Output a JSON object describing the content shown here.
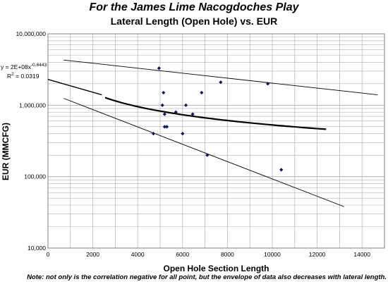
{
  "chart_data": {
    "type": "scatter",
    "title": "For the James Lime Nacogdoches Play",
    "subtitle": "Lateral Length (Open Hole) vs. EUR",
    "xlabel": "Open Hole Section Length",
    "ylabel": "EUR (MMCFG)",
    "xlim": [
      0,
      15000
    ],
    "ylim": [
      10000,
      10000000
    ],
    "yscale": "log",
    "x_ticks": [
      "0",
      "2000",
      "4000",
      "6000",
      "8000",
      "10000",
      "12000",
      "14000"
    ],
    "y_ticks": [
      "10,000",
      "100,000",
      "1,000,000",
      "10,000,000"
    ],
    "grid": "horizontal and vertical gridlines",
    "points": [
      {
        "x": 4700,
        "y": 400000
      },
      {
        "x": 4950,
        "y": 3300000
      },
      {
        "x": 5100,
        "y": 1000000
      },
      {
        "x": 5150,
        "y": 1500000
      },
      {
        "x": 5200,
        "y": 750000
      },
      {
        "x": 5200,
        "y": 500000
      },
      {
        "x": 5300,
        "y": 500000
      },
      {
        "x": 5700,
        "y": 800000
      },
      {
        "x": 6000,
        "y": 400000
      },
      {
        "x": 6150,
        "y": 1000000
      },
      {
        "x": 6450,
        "y": 750000
      },
      {
        "x": 6850,
        "y": 1500000
      },
      {
        "x": 7100,
        "y": 200000
      },
      {
        "x": 7700,
        "y": 2100000
      },
      {
        "x": 9800,
        "y": 2000000
      },
      {
        "x": 10400,
        "y": 125000
      }
    ],
    "trendline": {
      "equation": "y = 2E+08x",
      "exponent": "-0.6443",
      "r2_label": "R",
      "r2_value": " = 0.0319",
      "a": 200000000,
      "b": -0.6443,
      "x_range": [
        2550,
        12400
      ]
    },
    "envelope_upper": [
      [
        700,
        4300000
      ],
      [
        14700,
        1400000
      ]
    ],
    "envelope_lower": [
      [
        700,
        1250000
      ],
      [
        13200,
        38000
      ]
    ]
  },
  "note": "Note: not only is the correlation negative for all point, but the envelope of data also decreases with lateral length.",
  "colors": {
    "point": "#0b1a5c",
    "line": "#000000",
    "grid": "#b0b0b0",
    "plot_bg": "#ffffff"
  }
}
